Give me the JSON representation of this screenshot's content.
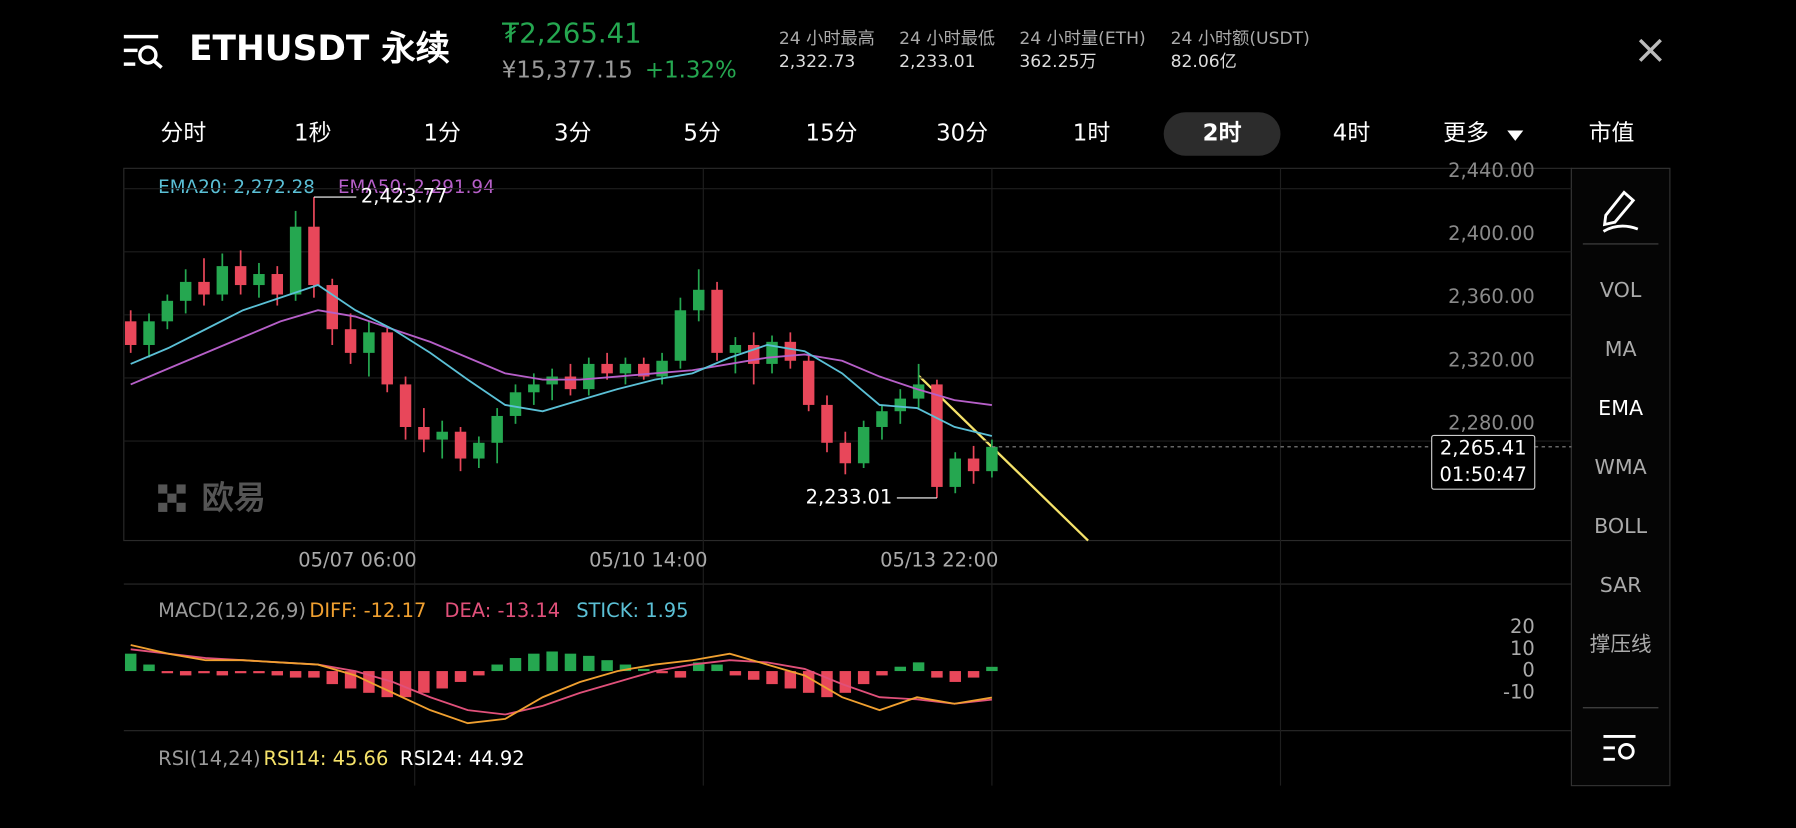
{
  "header": {
    "symbol": "ETHUSDT 永续",
    "price": "₮2,265.41",
    "cny": "¥15,377.15",
    "change": "+1.32%",
    "stats": [
      {
        "label": "24 小时最高",
        "value": "2,322.73"
      },
      {
        "label": "24 小时最低",
        "value": "2,233.01"
      },
      {
        "label": "24 小时量(ETH)",
        "value": "362.25万"
      },
      {
        "label": "24 小时额(USDT)",
        "value": "82.06亿"
      }
    ]
  },
  "tabs": [
    "分时",
    "1秒",
    "1分",
    "3分",
    "5分",
    "15分",
    "30分",
    "1时",
    "2时",
    "4时",
    "更多",
    "市值"
  ],
  "selected_tab": 8,
  "chart": {
    "ema20_legend": "EMA20: 2,272.28",
    "ema50_legend": "EMA50: 2,291.94",
    "watermark": "欧易",
    "ylim": [
      2206,
      2442
    ],
    "yticks": [
      {
        "value": 2440,
        "label": "2,440.00"
      },
      {
        "value": 2400,
        "label": "2,400.00"
      },
      {
        "value": 2360,
        "label": "2,360.00"
      },
      {
        "value": 2320,
        "label": "2,320.00"
      },
      {
        "value": 2280,
        "label": "2,280.00"
      }
    ],
    "xlabels": [
      "05/07 06:00",
      "05/10 14:00",
      "05/13 22:00"
    ],
    "high": {
      "value": 2423.77,
      "label": "2,423.77"
    },
    "low": {
      "value": 2233.01,
      "label": "2,233.01"
    },
    "last": {
      "value": 2265.41,
      "label": "2,265.41"
    },
    "countdown": "01:50:47",
    "candles": [
      [
        2345,
        2352,
        2325,
        2330
      ],
      [
        2330,
        2350,
        2322,
        2345
      ],
      [
        2345,
        2362,
        2340,
        2358
      ],
      [
        2358,
        2378,
        2350,
        2370
      ],
      [
        2370,
        2385,
        2355,
        2362
      ],
      [
        2362,
        2388,
        2358,
        2380
      ],
      [
        2380,
        2390,
        2362,
        2368
      ],
      [
        2368,
        2382,
        2360,
        2375
      ],
      [
        2375,
        2380,
        2355,
        2362
      ],
      [
        2362,
        2415,
        2358,
        2405
      ],
      [
        2405,
        2423.77,
        2360,
        2368
      ],
      [
        2368,
        2372,
        2330,
        2340
      ],
      [
        2340,
        2350,
        2318,
        2325
      ],
      [
        2325,
        2345,
        2310,
        2338
      ],
      [
        2338,
        2342,
        2300,
        2305
      ],
      [
        2305,
        2310,
        2270,
        2278
      ],
      [
        2278,
        2290,
        2262,
        2270
      ],
      [
        2270,
        2282,
        2258,
        2275
      ],
      [
        2275,
        2278,
        2250,
        2258
      ],
      [
        2258,
        2272,
        2252,
        2268
      ],
      [
        2268,
        2290,
        2255,
        2285
      ],
      [
        2285,
        2305,
        2280,
        2300
      ],
      [
        2300,
        2312,
        2292,
        2305
      ],
      [
        2305,
        2315,
        2295,
        2310
      ],
      [
        2310,
        2318,
        2298,
        2302
      ],
      [
        2302,
        2322,
        2298,
        2318
      ],
      [
        2318,
        2325,
        2308,
        2312
      ],
      [
        2312,
        2322,
        2305,
        2318
      ],
      [
        2318,
        2322,
        2308,
        2310
      ],
      [
        2310,
        2325,
        2305,
        2320
      ],
      [
        2320,
        2360,
        2315,
        2352
      ],
      [
        2352,
        2378,
        2345,
        2365
      ],
      [
        2365,
        2370,
        2320,
        2325
      ],
      [
        2325,
        2335,
        2312,
        2330
      ],
      [
        2330,
        2338,
        2305,
        2318
      ],
      [
        2318,
        2336,
        2312,
        2332
      ],
      [
        2332,
        2338,
        2315,
        2320
      ],
      [
        2320,
        2324,
        2288,
        2292
      ],
      [
        2292,
        2298,
        2262,
        2268
      ],
      [
        2268,
        2275,
        2248,
        2255
      ],
      [
        2255,
        2282,
        2252,
        2278
      ],
      [
        2278,
        2292,
        2270,
        2288
      ],
      [
        2288,
        2302,
        2280,
        2296
      ],
      [
        2296,
        2318,
        2290,
        2305
      ],
      [
        2305,
        2308,
        2233.01,
        2240
      ],
      [
        2240,
        2262,
        2236,
        2258
      ],
      [
        2258,
        2266,
        2242,
        2250
      ],
      [
        2250,
        2270,
        2246,
        2265.41
      ]
    ],
    "ema20": [
      2318,
      2328,
      2340,
      2352,
      2360,
      2368,
      2352,
      2340,
      2325,
      2308,
      2292,
      2288,
      2295,
      2302,
      2308,
      2312,
      2322,
      2330,
      2326,
      2312,
      2292,
      2290,
      2278,
      2272.28
    ],
    "ema50": [
      2305,
      2315,
      2325,
      2335,
      2345,
      2352,
      2348,
      2340,
      2332,
      2322,
      2312,
      2308,
      2308,
      2310,
      2312,
      2314,
      2318,
      2322,
      2324,
      2320,
      2310,
      2302,
      2295,
      2291.94
    ]
  },
  "macd": {
    "legend": "MACD(12,26,9)",
    "diff_legend": "DIFF: -12.17",
    "dea_legend": "DEA: -13.14",
    "stick_legend": "STICK: 1.95",
    "ylim": [
      -27.4,
      40
    ],
    "yticks": [
      20,
      10,
      0,
      -10
    ],
    "histogram": [
      8,
      3,
      -1,
      -2,
      -1,
      -2,
      -1,
      -1,
      -2,
      -3,
      -3,
      -6,
      -8,
      -10,
      -12,
      -12,
      -10,
      -8,
      -5,
      -2,
      3,
      6,
      8,
      9,
      8,
      7,
      5,
      3,
      1,
      -1,
      -3,
      4,
      3,
      -2,
      -4,
      -6,
      -8,
      -10,
      -12,
      -10,
      -6,
      -2,
      2,
      4,
      -3,
      -5,
      -3,
      1.95
    ],
    "diff": [
      12,
      8,
      5,
      5,
      4,
      3,
      -2,
      -10,
      -18,
      -24,
      -22,
      -12,
      -5,
      0,
      3,
      5,
      8,
      3,
      -2,
      -12,
      -18,
      -12,
      -15,
      -12.17
    ],
    "dea": [
      10,
      8,
      6,
      5,
      4,
      3,
      0,
      -5,
      -12,
      -18,
      -20,
      -16,
      -10,
      -5,
      0,
      3,
      5,
      4,
      1,
      -6,
      -12,
      -13,
      -15,
      -13.14
    ]
  },
  "rsi": {
    "legend": "RSI(14,24)",
    "rsi14_legend": "RSI14: 45.66",
    "rsi24_legend": "RSI24: 44.92"
  },
  "sidebar": [
    "VOL",
    "MA",
    "EMA",
    "WMA",
    "BOLL",
    "SAR",
    "撑压线"
  ],
  "sidebar_selected": 2
}
